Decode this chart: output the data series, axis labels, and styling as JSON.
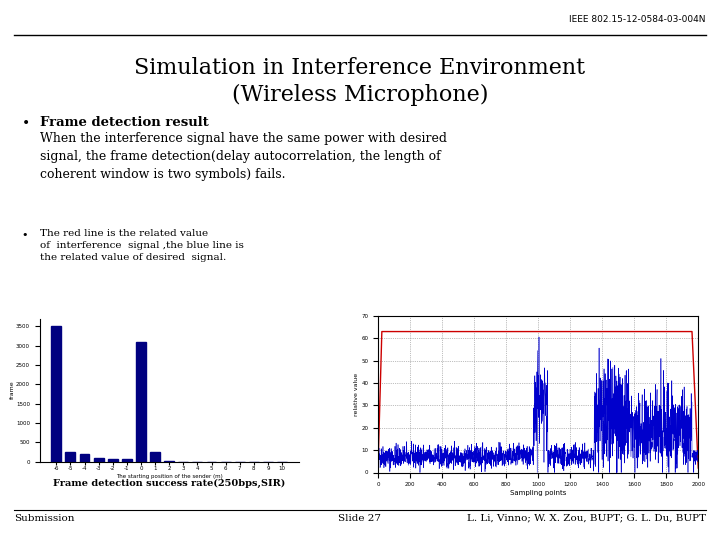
{
  "ieee_label": "IEEE 802.15-12-0584-03-004N",
  "title_line1": "Simulation in Interference Environment",
  "title_line2": "(Wireless Microphone)",
  "bullet1_bold": "Frame detection result",
  "bullet1_text": "When the interference signal have the same power with desired\nsignal, the frame detection(delay autocorrelation, the length of\ncoherent window is two symbols) fails.",
  "bullet2_text": "The red line is the related value\nof  interference  signal ,the blue line is\nthe related value of desired  signal.",
  "bar_caption": "Frame detection success rate(250bps,SIR)",
  "footer_left": "Submission",
  "footer_mid": "Slide 27",
  "footer_right": "L. Li, Vinno; W. X. Zou, BUPT; G. L. Du, BUPT",
  "bar_categories": [
    "-6",
    "-5",
    "-4",
    "-3",
    "-2",
    "-1",
    "0",
    "1",
    "2",
    "3",
    "4",
    "5",
    "6",
    "7",
    "8",
    "9",
    "10"
  ],
  "bar_values": [
    3500,
    260,
    200,
    100,
    60,
    60,
    3100,
    250,
    20,
    5,
    3,
    2,
    1,
    1,
    1,
    1,
    1
  ],
  "bar_color": "#000080",
  "bg_color": "#ffffff",
  "line_color_red": "#cc0000",
  "line_color_blue": "#0000cc",
  "plot2_ylim": [
    0,
    70
  ],
  "plot2_xlim": [
    0,
    2000
  ],
  "plot2_yticks": [
    0,
    10,
    20,
    30,
    40,
    50,
    60,
    70
  ],
  "plot2_xticks": [
    0,
    200,
    400,
    600,
    800,
    1000,
    1200,
    1400,
    1600,
    1800,
    2000
  ],
  "plot2_xlabel": "Sampling points",
  "plot2_ylabel": "relative value"
}
